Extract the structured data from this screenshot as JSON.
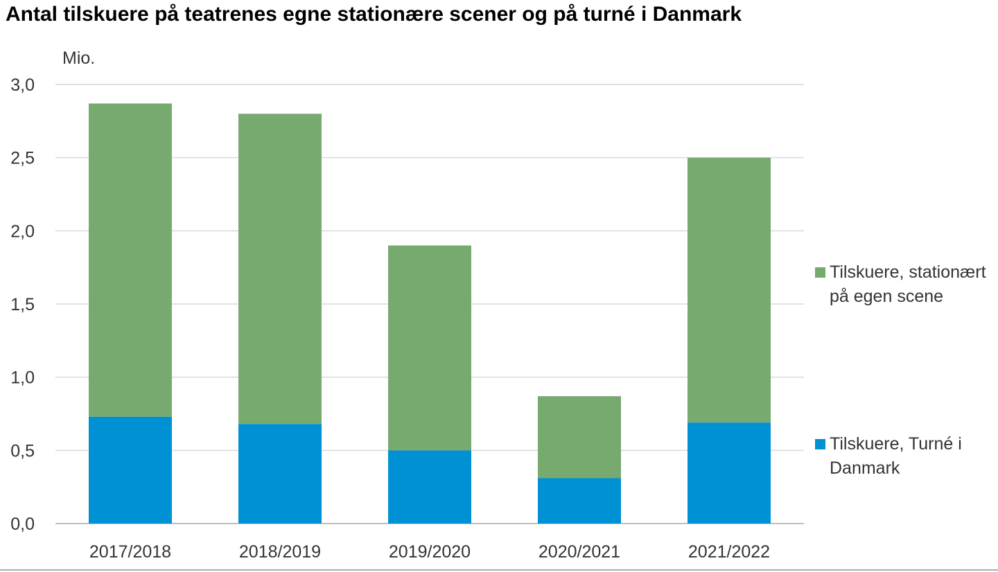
{
  "chart_data": {
    "type": "bar",
    "stacked": true,
    "title": "Antal tilskuere på teatrenes egne stationære scener og på turné i Danmark",
    "ylabel": "Mio.",
    "xlabel": "",
    "categories": [
      "2017/2018",
      "2018/2019",
      "2019/2020",
      "2020/2021",
      "2021/2022"
    ],
    "ylim": [
      0,
      3.0
    ],
    "yticks": [
      "0,0",
      "0,5",
      "1,0",
      "1,5",
      "2,0",
      "2,5",
      "3,0"
    ],
    "grid": true,
    "legend_position": "right",
    "series": [
      {
        "name": "Tilskuere, Turné i Danmark",
        "color": "#0090d4",
        "values": [
          0.73,
          0.68,
          0.5,
          0.31,
          0.69
        ]
      },
      {
        "name": "Tilskuere, stationært på egen scene",
        "color": "#76aa6f",
        "values": [
          2.14,
          2.12,
          1.4,
          0.56,
          1.81
        ]
      }
    ]
  }
}
